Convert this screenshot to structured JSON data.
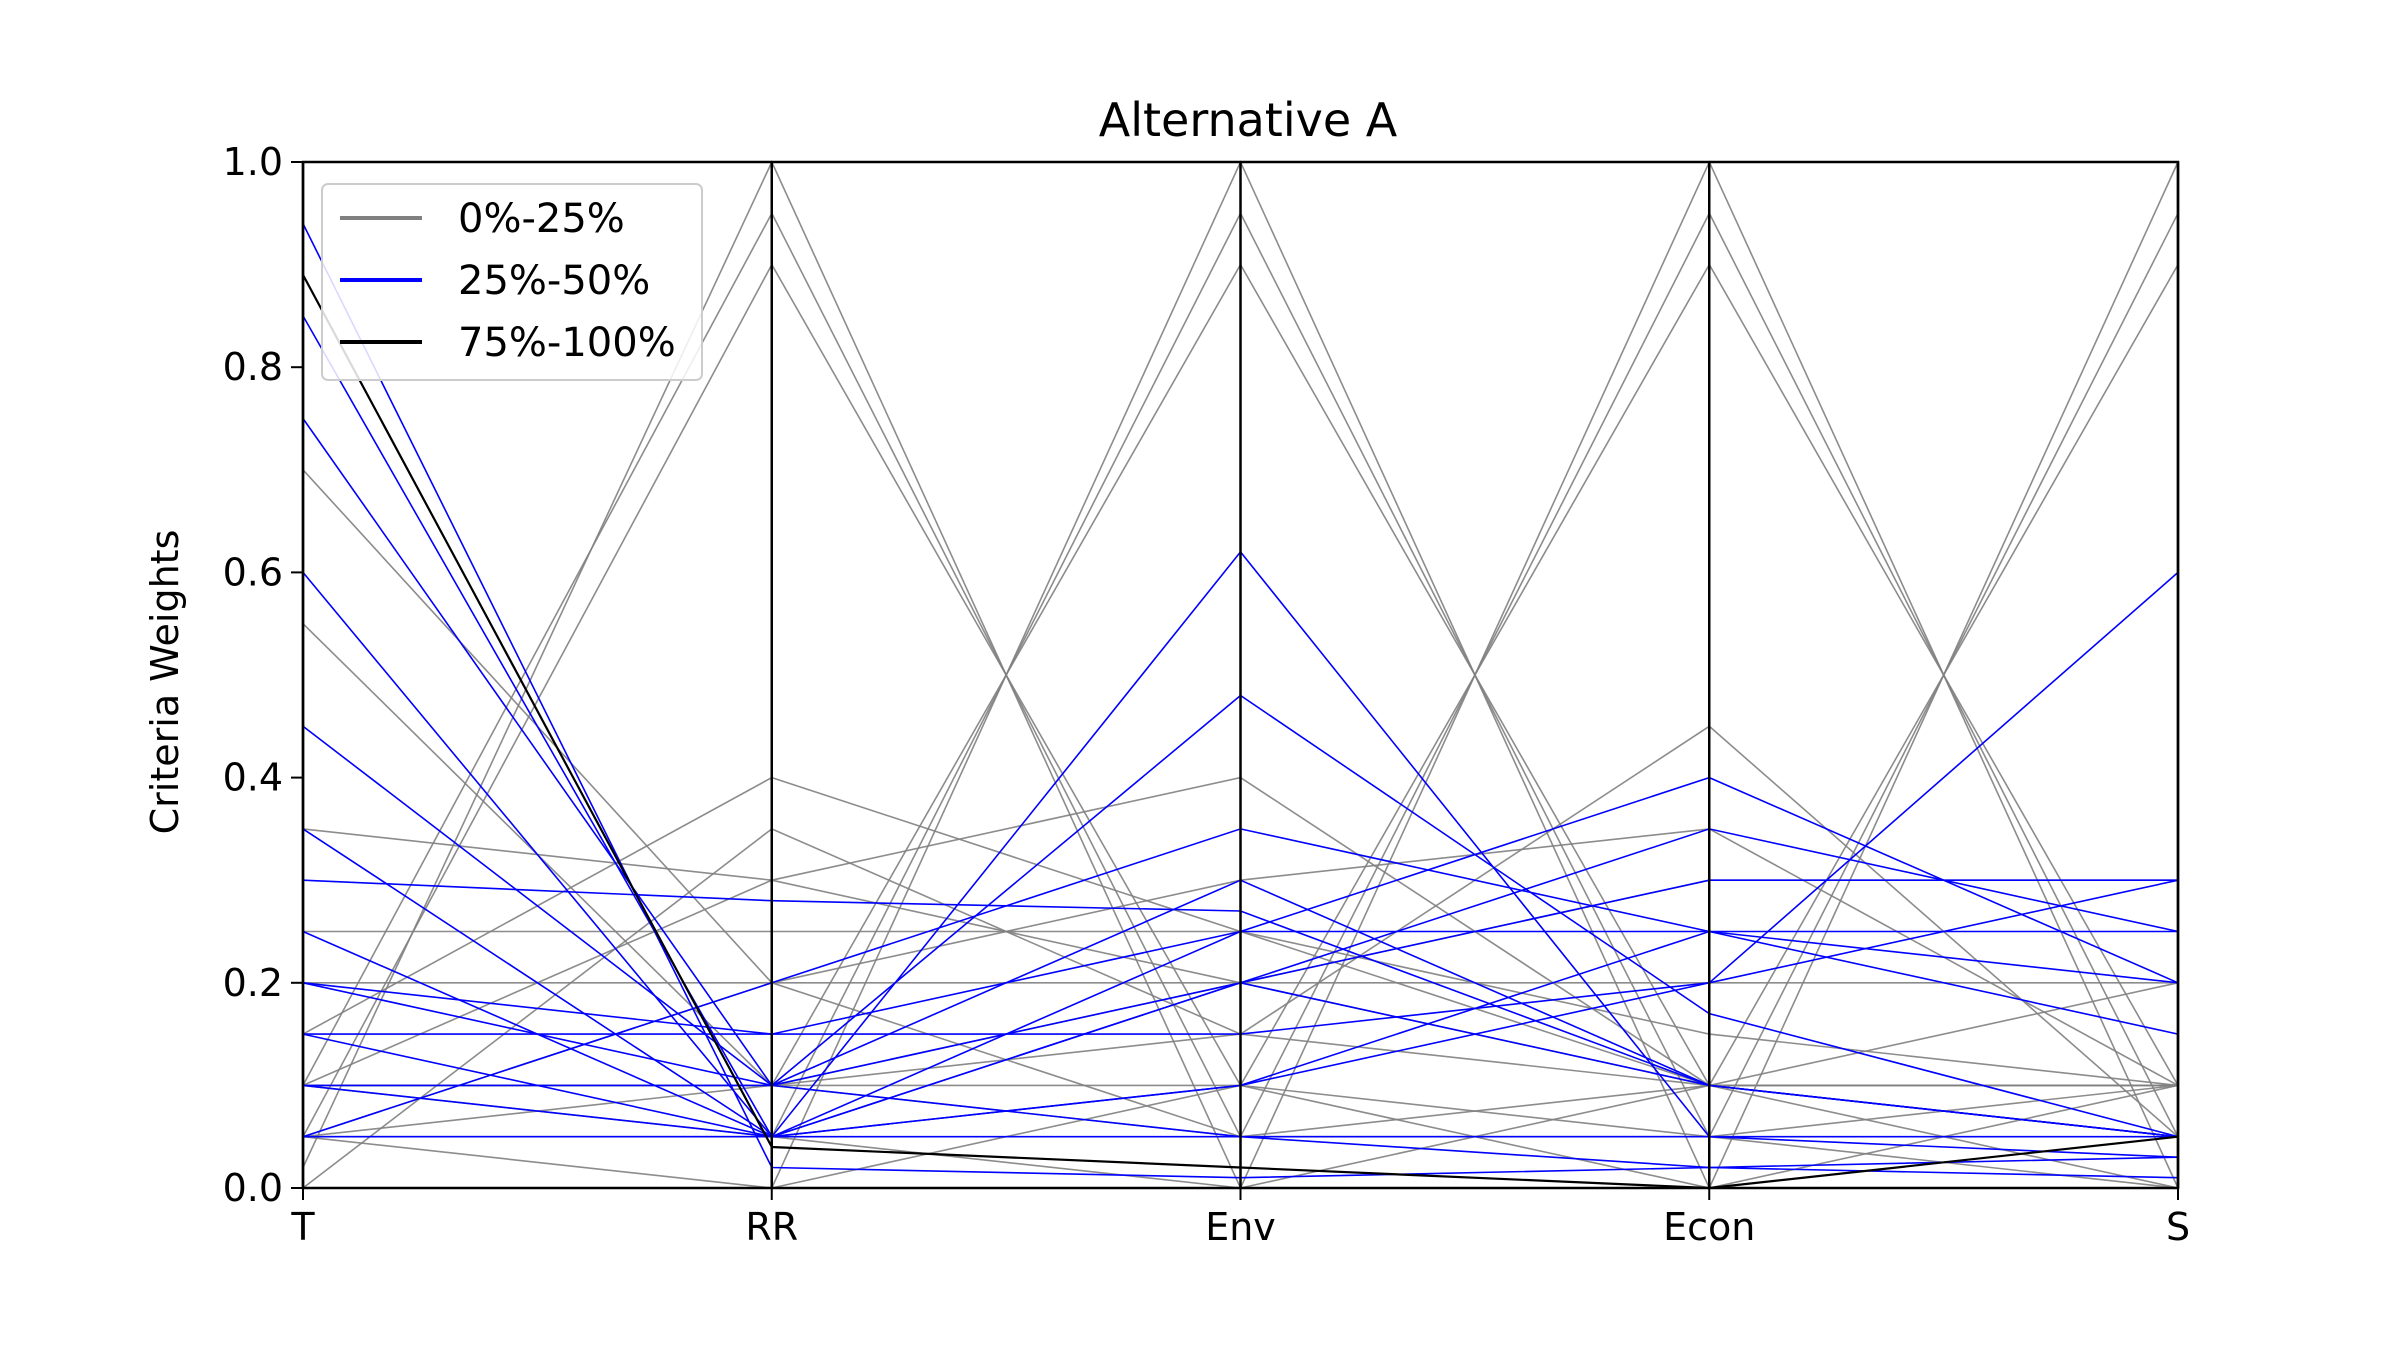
{
  "chart_data": {
    "type": "parallel-coordinates",
    "title": "Alternative A",
    "ylabel": "Criteria Weights",
    "xlabel": "",
    "axes": [
      "T",
      "RR",
      "Env",
      "Econ",
      "S"
    ],
    "ylim": [
      0,
      1.0
    ],
    "yticks": [
      0.0,
      0.2,
      0.4,
      0.6,
      0.8,
      1.0
    ],
    "ytick_labels": [
      "0.0",
      "0.2",
      "0.4",
      "0.6",
      "0.8",
      "1.0"
    ],
    "legend_position": "upper-left",
    "series": [
      {
        "name": "0%-25%",
        "color": "#808080",
        "lines": [
          [
            0.02,
            1.0,
            0.0,
            0.0,
            0.0
          ],
          [
            0.1,
            0.95,
            0.05,
            0.1,
            0.2
          ],
          [
            0.05,
            0.9,
            0.1,
            0.0,
            0.1
          ],
          [
            0.0,
            0.0,
            1.0,
            0.0,
            0.0
          ],
          [
            0.1,
            0.05,
            0.95,
            0.05,
            0.1
          ],
          [
            0.05,
            0.1,
            0.9,
            0.1,
            0.0
          ],
          [
            0.0,
            0.0,
            0.0,
            1.0,
            0.0
          ],
          [
            0.1,
            0.1,
            0.05,
            0.95,
            0.05
          ],
          [
            0.05,
            0.0,
            0.1,
            0.9,
            0.1
          ],
          [
            0.0,
            0.0,
            0.0,
            0.0,
            1.0
          ],
          [
            0.1,
            0.1,
            0.1,
            0.05,
            0.95
          ],
          [
            0.05,
            0.05,
            0.0,
            0.1,
            0.9
          ],
          [
            0.7,
            0.2,
            0.05,
            0.05,
            0.0
          ],
          [
            0.55,
            0.1,
            0.15,
            0.1,
            0.1
          ],
          [
            0.35,
            0.3,
            0.2,
            0.1,
            0.05
          ],
          [
            0.25,
            0.25,
            0.25,
            0.15,
            0.1
          ],
          [
            0.2,
            0.2,
            0.2,
            0.2,
            0.2
          ],
          [
            0.15,
            0.4,
            0.25,
            0.1,
            0.1
          ],
          [
            0.1,
            0.3,
            0.4,
            0.1,
            0.1
          ],
          [
            0.05,
            0.2,
            0.3,
            0.35,
            0.1
          ],
          [
            0.1,
            0.1,
            0.2,
            0.3,
            0.3
          ],
          [
            0.0,
            0.35,
            0.15,
            0.45,
            0.05
          ]
        ]
      },
      {
        "name": "25%-50%",
        "color": "#0000ff",
        "lines": [
          [
            0.94,
            0.02,
            0.01,
            0.02,
            0.01
          ],
          [
            0.85,
            0.05,
            0.05,
            0.02,
            0.03
          ],
          [
            0.75,
            0.1,
            0.05,
            0.05,
            0.05
          ],
          [
            0.6,
            0.05,
            0.2,
            0.1,
            0.05
          ],
          [
            0.45,
            0.1,
            0.3,
            0.1,
            0.05
          ],
          [
            0.35,
            0.05,
            0.1,
            0.25,
            0.25
          ],
          [
            0.3,
            0.28,
            0.27,
            0.1,
            0.05
          ],
          [
            0.25,
            0.05,
            0.62,
            0.05,
            0.03
          ],
          [
            0.2,
            0.1,
            0.48,
            0.17,
            0.05
          ],
          [
            0.15,
            0.05,
            0.2,
            0.35,
            0.25
          ],
          [
            0.1,
            0.1,
            0.2,
            0.3,
            0.3
          ],
          [
            0.05,
            0.05,
            0.1,
            0.2,
            0.6
          ],
          [
            0.15,
            0.15,
            0.25,
            0.25,
            0.2
          ],
          [
            0.05,
            0.2,
            0.35,
            0.25,
            0.15
          ],
          [
            0.1,
            0.05,
            0.25,
            0.4,
            0.2
          ],
          [
            0.2,
            0.15,
            0.15,
            0.2,
            0.3
          ]
        ]
      },
      {
        "name": "75%-100%",
        "color": "#000000",
        "lines": [
          [
            0.89,
            0.04,
            0.02,
            0.0,
            0.05
          ]
        ]
      }
    ]
  }
}
